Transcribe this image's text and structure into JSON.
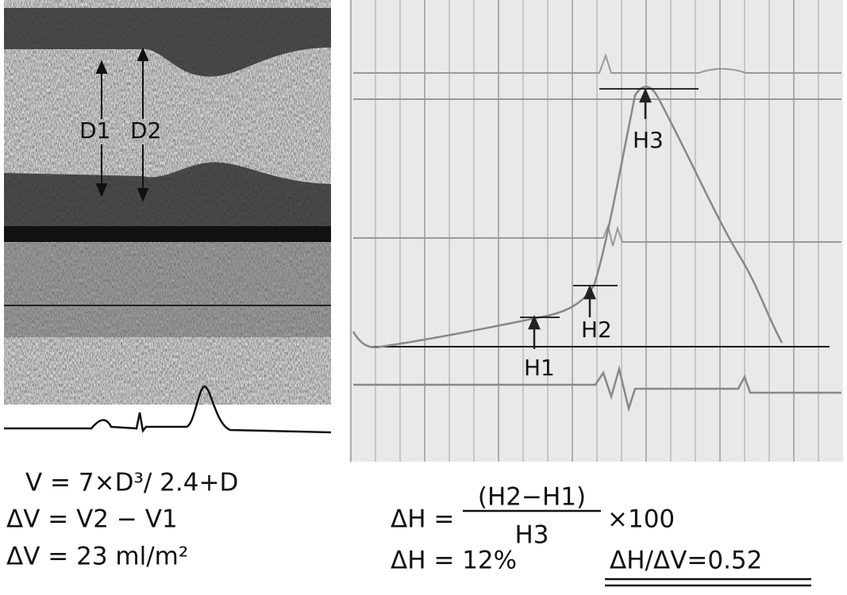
{
  "echo_labels": {
    "d1": "D1",
    "d2": "D2"
  },
  "pressure_labels": {
    "h1": "H1",
    "h2": "H2",
    "h3": "H3"
  },
  "formulas": {
    "volume": "V = 7×D³/ 2.4+D",
    "delta_v_def": "ΔV = V2 − V1",
    "delta_v_value": "ΔV = 23 ml/m²",
    "delta_h_lhs": "ΔH =",
    "delta_h_numerator": "(H2−H1)",
    "delta_h_denominator": "H3",
    "delta_h_factor": "×100",
    "delta_h_value": "ΔH = 12%",
    "ratio": "ΔH/ΔV=0.52"
  }
}
